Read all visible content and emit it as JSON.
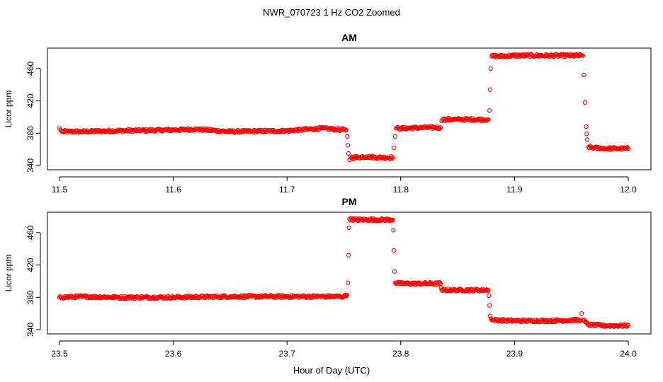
{
  "figure": {
    "title": "NWR_070723  1 Hz CO2 Zoomed",
    "xlabel": "Hour of Day (UTC)"
  },
  "chart_data": [
    {
      "type": "scatter",
      "title": "AM",
      "ylabel": "Licor ppm",
      "xlim": [
        11.5,
        12.0
      ],
      "ylim": [
        340,
        480
      ],
      "xticks": [
        "11.5",
        "11.6",
        "11.7",
        "11.8",
        "11.9",
        "12.0"
      ],
      "yticks": [
        "340",
        "380",
        "420",
        "460"
      ],
      "color": "#ff0000",
      "marker": "open-circle",
      "series": [
        {
          "x": [
            11.5,
            11.501,
            11.502,
            11.52,
            11.55,
            11.6,
            11.62,
            11.65,
            11.7,
            11.73,
            11.752,
            11.753,
            11.7535,
            11.754,
            11.755,
            11.756,
            11.76,
            11.77,
            11.78,
            11.793,
            11.794,
            11.795,
            11.796,
            11.8,
            11.82,
            11.835,
            11.836,
            11.837,
            11.85,
            11.877,
            11.878,
            11.8785,
            11.879,
            11.88,
            11.9,
            11.93,
            11.96,
            11.961,
            11.962,
            11.963,
            11.9635,
            11.964,
            11.965,
            11.97,
            11.98,
            12.0
          ],
          "y": [
            386,
            384,
            382,
            382,
            383,
            384,
            385,
            382,
            383,
            386,
            384,
            376,
            365,
            355,
            347,
            350,
            350,
            351,
            350,
            350,
            362,
            376,
            386,
            386,
            387,
            387,
            395,
            397,
            397,
            397,
            408,
            434,
            460,
            475,
            476,
            476,
            476,
            452,
            418,
            388,
            379,
            372,
            363,
            362,
            361,
            361
          ]
        }
      ]
    },
    {
      "type": "scatter",
      "title": "PM",
      "ylabel": "Licor ppm",
      "xlim": [
        23.5,
        24.0
      ],
      "ylim": [
        340,
        480
      ],
      "xticks": [
        "23.5",
        "23.6",
        "23.7",
        "23.8",
        "23.9",
        "24.0"
      ],
      "yticks": [
        "340",
        "380",
        "420",
        "460"
      ],
      "color": "#ff0000",
      "marker": "open-circle",
      "series": [
        {
          "x": [
            23.5,
            23.52,
            23.55,
            23.6,
            23.65,
            23.7,
            23.75,
            23.753,
            23.7535,
            23.754,
            23.7545,
            23.755,
            23.76,
            23.78,
            23.793,
            23.7935,
            23.794,
            23.7945,
            23.795,
            23.8,
            23.82,
            23.835,
            23.8355,
            23.836,
            23.85,
            23.877,
            23.8775,
            23.878,
            23.8785,
            23.88,
            23.9,
            23.93,
            23.958,
            23.959,
            23.96,
            23.965,
            23.98,
            24.0
          ],
          "y": [
            380,
            381,
            380,
            380,
            381,
            381,
            381,
            383,
            398,
            432,
            466,
            477,
            476,
            476,
            476,
            463,
            438,
            412,
            398,
            397,
            397,
            397,
            392,
            389,
            389,
            389,
            382,
            370,
            357,
            352,
            351,
            351,
            352,
            360,
            352,
            346,
            345,
            345
          ]
        }
      ]
    }
  ]
}
